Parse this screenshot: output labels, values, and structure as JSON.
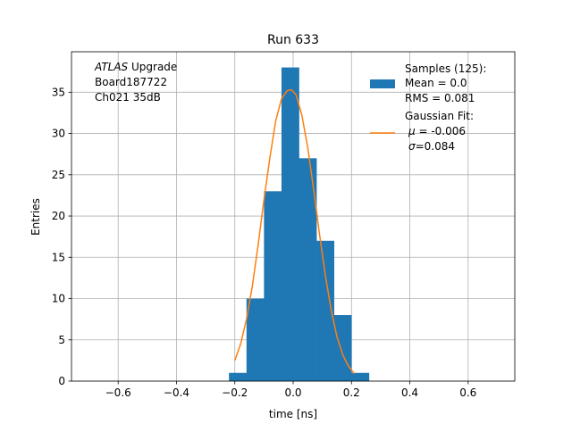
{
  "chart_data": {
    "type": "bar",
    "title": "Run 633",
    "xlabel": "time [ns]",
    "ylabel": "Entries",
    "xlim": [
      -0.76,
      0.76
    ],
    "ylim": [
      0,
      39.9
    ],
    "grid": true,
    "legend_placement": "top-right",
    "x_ticks": [
      -0.6,
      -0.4,
      -0.2,
      0.0,
      0.2,
      0.4,
      0.6
    ],
    "x_tick_labels": [
      "−0.6",
      "−0.4",
      "−0.2",
      "0.0",
      "0.2",
      "0.4",
      "0.6"
    ],
    "y_ticks": [
      0,
      5,
      10,
      15,
      20,
      25,
      30,
      35
    ],
    "y_tick_labels": [
      "0",
      "5",
      "10",
      "15",
      "20",
      "25",
      "30",
      "35"
    ],
    "histogram": {
      "name": "Samples (125):",
      "color": "#1f77b4",
      "bin_edges": [
        -0.22,
        -0.16,
        -0.1,
        -0.04,
        0.02,
        0.08,
        0.14,
        0.2,
        0.26
      ],
      "counts": [
        1,
        10,
        23,
        38,
        27,
        17,
        8,
        1
      ]
    },
    "fit": {
      "name": "Gaussian Fit:",
      "color": "#ff7f0e",
      "x": [
        -0.2,
        -0.18,
        -0.16,
        -0.14,
        -0.12,
        -0.1,
        -0.08,
        -0.06,
        -0.04,
        -0.02,
        -0.006,
        0.01,
        0.03,
        0.05,
        0.07,
        0.09,
        0.11,
        0.13,
        0.15,
        0.17,
        0.19,
        0.21
      ],
      "y": [
        2.5,
        4.5,
        7.5,
        11.5,
        16.5,
        22.0,
        27.0,
        31.5,
        34.2,
        35.2,
        35.3,
        34.7,
        32.2,
        28.3,
        23.3,
        17.9,
        12.9,
        8.7,
        5.4,
        3.2,
        1.8,
        0.9
      ]
    },
    "legend_stats": {
      "samples": [
        " Mean = 0.0",
        " RMS = 0.081"
      ],
      "fit_mu": " = -0.006",
      "fit_sigma": "=0.084"
    },
    "annotation": {
      "italic": "ATLAS",
      "rest": " Upgrade",
      "lines": [
        " Board187722",
        " Ch021 35dB"
      ]
    }
  }
}
